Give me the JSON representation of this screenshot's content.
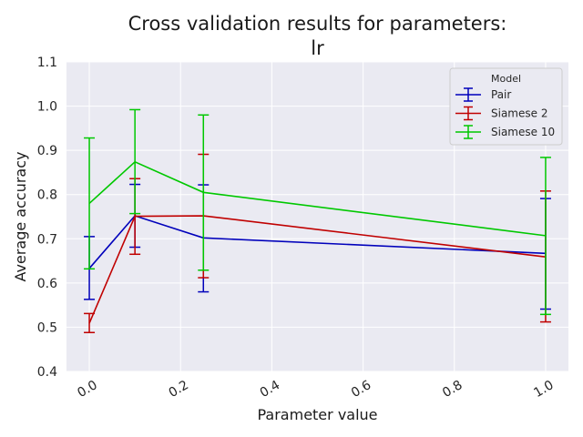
{
  "chart_data": {
    "type": "line",
    "title": "Cross validation results for parameters:",
    "subtitle": "lr",
    "xlabel": "Parameter value",
    "ylabel": "Average accuracy",
    "xlim": [
      -0.05,
      1.05
    ],
    "ylim": [
      0.4,
      1.1
    ],
    "x_ticks": [
      "0.0",
      "0.2",
      "0.4",
      "0.6",
      "0.8",
      "1.0"
    ],
    "y_ticks": [
      "0.4",
      "0.5",
      "0.6",
      "0.7",
      "0.8",
      "0.9",
      "1.0",
      "1.1"
    ],
    "grid": true,
    "legend": {
      "title": "Model",
      "placement": "top-right"
    },
    "x": [
      0.0,
      0.1,
      0.25,
      1.0
    ],
    "series": [
      {
        "name": "Pair",
        "color": "#0000bb",
        "values": [
          0.633,
          0.752,
          0.702,
          0.667
        ],
        "err_low": [
          0.563,
          0.681,
          0.58,
          0.541
        ],
        "err_high": [
          0.705,
          0.823,
          0.822,
          0.791
        ]
      },
      {
        "name": "Siamese 2",
        "color": "#c00000",
        "values": [
          0.509,
          0.751,
          0.752,
          0.659
        ],
        "err_low": [
          0.488,
          0.665,
          0.612,
          0.512
        ],
        "err_high": [
          0.531,
          0.836,
          0.891,
          0.808
        ]
      },
      {
        "name": "Siamese 10",
        "color": "#00c800",
        "values": [
          0.78,
          0.874,
          0.805,
          0.707
        ],
        "err_low": [
          0.632,
          0.757,
          0.629,
          0.529
        ],
        "err_high": [
          0.928,
          0.992,
          0.98,
          0.884
        ]
      }
    ]
  }
}
